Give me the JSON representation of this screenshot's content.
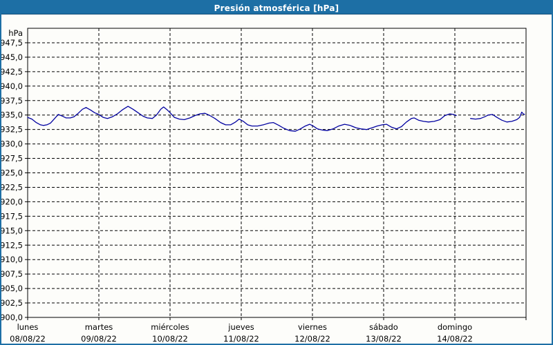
{
  "chart_data": {
    "type": "line",
    "title": "Presión atmosférica [hPa]",
    "grid": "dashed",
    "legend": "none",
    "y_axis": {
      "unit": "hPa",
      "min": 900,
      "max": 950,
      "step": 2.5,
      "tick_labels": [
        "947,5",
        "945,0",
        "942,5",
        "940,0",
        "937,5",
        "935,0",
        "932,5",
        "930,0",
        "927,5",
        "925,0",
        "922,5",
        "920,0",
        "917,5",
        "915,0",
        "912,5",
        "910,0",
        "907,5",
        "905,0",
        "902,5",
        "900,0"
      ]
    },
    "x_axis": {
      "days": [
        {
          "name": "lunes",
          "date": "08/08/22"
        },
        {
          "name": "martes",
          "date": "09/08/22"
        },
        {
          "name": "miércoles",
          "date": "10/08/22"
        },
        {
          "name": "jueves",
          "date": "11/08/22"
        },
        {
          "name": "viernes",
          "date": "12/08/22"
        },
        {
          "name": "sábado",
          "date": "13/08/22"
        },
        {
          "name": "domingo",
          "date": "14/08/22"
        }
      ]
    },
    "series": [
      {
        "name": "Presión atmosférica",
        "unit": "hPa",
        "color": "#0000a0",
        "note_x_units": "days since Monday 00:00",
        "segments": [
          [
            [
              0.0,
              934.6
            ],
            [
              0.06,
              934.3
            ],
            [
              0.12,
              933.7
            ],
            [
              0.18,
              933.3
            ],
            [
              0.22,
              933.2
            ],
            [
              0.27,
              933.3
            ],
            [
              0.32,
              933.6
            ],
            [
              0.38,
              934.4
            ],
            [
              0.43,
              935.1
            ],
            [
              0.49,
              934.8
            ],
            [
              0.54,
              934.5
            ],
            [
              0.6,
              934.5
            ],
            [
              0.65,
              934.7
            ],
            [
              0.71,
              935.3
            ],
            [
              0.77,
              936.0
            ],
            [
              0.82,
              936.3
            ],
            [
              0.88,
              935.9
            ],
            [
              0.94,
              935.4
            ],
            [
              1.0,
              935.1
            ],
            [
              1.06,
              934.6
            ],
            [
              1.12,
              934.4
            ],
            [
              1.19,
              934.7
            ],
            [
              1.26,
              935.2
            ],
            [
              1.33,
              935.9
            ],
            [
              1.41,
              936.5
            ],
            [
              1.48,
              936.0
            ],
            [
              1.55,
              935.4
            ],
            [
              1.62,
              934.8
            ],
            [
              1.68,
              934.5
            ],
            [
              1.75,
              934.4
            ],
            [
              1.81,
              935.0
            ],
            [
              1.87,
              936.0
            ],
            [
              1.91,
              936.4
            ],
            [
              1.96,
              935.9
            ],
            [
              2.0,
              935.4
            ],
            [
              2.06,
              934.6
            ],
            [
              2.13,
              934.3
            ],
            [
              2.2,
              934.2
            ],
            [
              2.28,
              934.5
            ],
            [
              2.35,
              934.9
            ],
            [
              2.42,
              935.2
            ],
            [
              2.49,
              935.3
            ],
            [
              2.56,
              934.9
            ],
            [
              2.63,
              934.4
            ],
            [
              2.71,
              933.7
            ],
            [
              2.78,
              933.3
            ],
            [
              2.85,
              933.3
            ],
            [
              2.92,
              933.8
            ],
            [
              2.97,
              934.3
            ],
            [
              3.03,
              933.9
            ],
            [
              3.09,
              933.3
            ],
            [
              3.15,
              933.1
            ],
            [
              3.23,
              933.1
            ],
            [
              3.31,
              933.3
            ],
            [
              3.39,
              933.6
            ],
            [
              3.45,
              933.7
            ],
            [
              3.53,
              933.2
            ],
            [
              3.6,
              932.7
            ],
            [
              3.68,
              932.3
            ],
            [
              3.76,
              932.2
            ],
            [
              3.83,
              932.6
            ],
            [
              3.9,
              933.1
            ],
            [
              3.96,
              933.4
            ],
            [
              4.01,
              933.1
            ],
            [
              4.07,
              932.6
            ],
            [
              4.14,
              932.4
            ],
            [
              4.21,
              932.3
            ],
            [
              4.29,
              932.6
            ],
            [
              4.37,
              933.1
            ],
            [
              4.45,
              933.4
            ],
            [
              4.53,
              933.2
            ],
            [
              4.61,
              932.8
            ],
            [
              4.68,
              932.6
            ],
            [
              4.76,
              932.5
            ],
            [
              4.84,
              932.8
            ],
            [
              4.91,
              933.1
            ],
            [
              4.98,
              933.3
            ],
            [
              5.04,
              933.4
            ],
            [
              5.11,
              932.9
            ],
            [
              5.18,
              932.6
            ],
            [
              5.25,
              933.0
            ],
            [
              5.32,
              933.8
            ],
            [
              5.39,
              934.4
            ],
            [
              5.43,
              934.5
            ],
            [
              5.49,
              934.1
            ],
            [
              5.56,
              933.9
            ],
            [
              5.63,
              933.8
            ],
            [
              5.71,
              933.9
            ],
            [
              5.79,
              934.2
            ],
            [
              5.86,
              934.9
            ],
            [
              5.93,
              935.2
            ],
            [
              5.98,
              935.1
            ],
            [
              6.02,
              934.9
            ]
          ],
          [
            [
              6.22,
              934.4
            ],
            [
              6.29,
              934.3
            ],
            [
              6.36,
              934.4
            ],
            [
              6.42,
              934.7
            ],
            [
              6.47,
              935.0
            ],
            [
              6.53,
              935.1
            ],
            [
              6.59,
              934.6
            ],
            [
              6.66,
              934.1
            ],
            [
              6.73,
              933.8
            ],
            [
              6.8,
              933.9
            ],
            [
              6.87,
              934.2
            ],
            [
              6.91,
              934.6
            ],
            [
              6.94,
              935.5
            ],
            [
              6.96,
              935.2
            ],
            [
              6.98,
              935.1
            ]
          ]
        ]
      }
    ],
    "colors": {
      "titlebar_bg": "#1d6fa5",
      "titlebar_text": "#ffffff",
      "frame_border": "#1d6fa5",
      "plot_border": "#000000",
      "gridline": "#000000",
      "line": "#0000a0",
      "background": "#fdfdfa"
    }
  }
}
